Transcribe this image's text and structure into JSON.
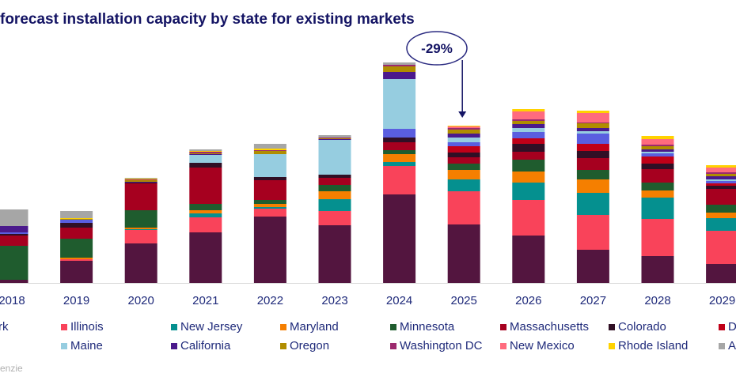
{
  "title": "forecast installation capacity by state for existing markets",
  "source_fragment": "enzie",
  "chart_data": {
    "type": "bar",
    "stacked": true,
    "title": "forecast installation capacity by state for existing markets",
    "categories": [
      "2018",
      "2019",
      "2020",
      "2021",
      "2022",
      "2023",
      "2024",
      "2025",
      "2026",
      "2027",
      "2028",
      "2029"
    ],
    "annotation": {
      "label": "-29%",
      "from": "2024",
      "to": "2025"
    },
    "grid": false,
    "legend_position": "bottom",
    "series": [
      {
        "name": "rk",
        "color": "#53153f",
        "values": [
          4,
          28,
          50,
          64,
          84,
          73,
          112,
          74,
          60,
          42,
          34,
          24
        ]
      },
      {
        "name": "Illinois",
        "color": "#f9435a",
        "values": [
          0,
          2,
          17,
          19,
          10,
          18,
          36,
          42,
          45,
          44,
          47,
          42
        ]
      },
      {
        "name": "New Jersey",
        "color": "#05908f",
        "values": [
          0,
          0,
          1,
          5,
          2,
          15,
          5,
          15,
          22,
          28,
          27,
          16
        ]
      },
      {
        "name": "Maryland",
        "color": "#f57f00",
        "values": [
          0,
          2,
          2,
          4,
          4,
          10,
          10,
          12,
          14,
          17,
          9,
          7
        ]
      },
      {
        "name": "Minnesota",
        "color": "#1f5c2e",
        "values": [
          43,
          24,
          22,
          8,
          5,
          8,
          5,
          8,
          15,
          12,
          10,
          10
        ]
      },
      {
        "name": "Massachusetts",
        "color": "#a6001f",
        "values": [
          13,
          14,
          34,
          46,
          25,
          9,
          10,
          8,
          10,
          15,
          17,
          20
        ]
      },
      {
        "name": "Colorado",
        "color": "#300f25",
        "values": [
          2,
          6,
          1,
          6,
          4,
          4,
          6,
          6,
          10,
          9,
          7,
          4
        ]
      },
      {
        "name": "De",
        "color": "#c00018",
        "values": [
          0,
          0,
          0,
          0,
          0,
          0,
          0,
          8,
          7,
          9,
          9,
          3
        ]
      },
      {
        "name": "",
        "color": "#5a5ee0",
        "values": [
          2,
          4,
          0,
          0,
          0,
          0,
          11,
          5,
          8,
          13,
          4,
          3
        ]
      },
      {
        "name": "Maine",
        "color": "#96cde0",
        "values": [
          0,
          0,
          0,
          10,
          29,
          44,
          63,
          6,
          5,
          3,
          2,
          2
        ]
      },
      {
        "name": "California",
        "color": "#4b1a8c",
        "values": [
          8,
          0,
          1,
          1,
          0,
          1,
          9,
          5,
          5,
          4,
          3,
          4
        ]
      },
      {
        "name": "Oregon",
        "color": "#b08d00",
        "values": [
          0,
          1,
          2,
          1,
          4,
          1,
          7,
          5,
          4,
          6,
          4,
          3
        ]
      },
      {
        "name": "Washington DC",
        "color": "#9c2a6e",
        "values": [
          0,
          0,
          1,
          2,
          1,
          1,
          2,
          2,
          2,
          1,
          2,
          2
        ]
      },
      {
        "name": "New Mexico",
        "color": "#ff6b7e",
        "values": [
          0,
          0,
          0,
          0,
          0,
          0,
          0,
          2,
          10,
          12,
          7,
          6
        ]
      },
      {
        "name": "Rhode Island",
        "color": "#ffd200",
        "values": [
          0,
          1,
          1,
          1,
          2,
          0,
          0,
          1,
          3,
          3,
          4,
          3
        ]
      },
      {
        "name": "Al",
        "color": "#a6a6a6",
        "values": [
          21,
          9,
          1,
          2,
          6,
          3,
          3,
          0,
          0,
          0,
          0,
          0
        ]
      }
    ]
  }
}
